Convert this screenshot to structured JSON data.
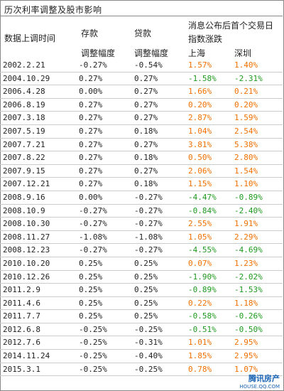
{
  "title": "历次利率调整及股市影响",
  "headers": {
    "date": "数据上调时间",
    "deposit": "存款",
    "loan": "贷款",
    "market_top": "消息公布后首个交易日",
    "market_sub": "指数涨跌",
    "deposit_sub": "调整幅度",
    "loan_sub": "调整幅度",
    "shanghai": "上海",
    "shenzhen": "深圳"
  },
  "colors": {
    "up": "#f07000",
    "down": "#1e9a1e"
  },
  "rows": [
    {
      "date": "2002.2.21",
      "deposit": "-0.27%",
      "loan": "-0.54%",
      "shanghai": "1.57%",
      "shenzhen": "1.40%"
    },
    {
      "date": "2004.10.29",
      "deposit": "0.27%",
      "loan": "0.27%",
      "shanghai": "-1.58%",
      "shenzhen": "-2.31%"
    },
    {
      "date": "2006.4.28",
      "deposit": "0.00%",
      "loan": "0.27%",
      "shanghai": "1.66%",
      "shenzhen": "0.21%"
    },
    {
      "date": "2006.8.19",
      "deposit": "0.27%",
      "loan": "0.27%",
      "shanghai": "0.20%",
      "shenzhen": "0.20%"
    },
    {
      "date": "2007.3.18",
      "deposit": "0.27%",
      "loan": "0.27%",
      "shanghai": "2.87%",
      "shenzhen": "1.59%"
    },
    {
      "date": "2007.5.19",
      "deposit": "0.27%",
      "loan": "0.18%",
      "shanghai": "1.04%",
      "shenzhen": "2.54%"
    },
    {
      "date": "2007.7.21",
      "deposit": "0.27%",
      "loan": "0.27%",
      "shanghai": "3.81%",
      "shenzhen": "5.38%"
    },
    {
      "date": "2007.8.22",
      "deposit": "0.27%",
      "loan": "0.18%",
      "shanghai": "0.50%",
      "shenzhen": "2.80%"
    },
    {
      "date": "2007.9.15",
      "deposit": "0.27%",
      "loan": "0.27%",
      "shanghai": "2.06%",
      "shenzhen": "1.54%"
    },
    {
      "date": "2007.12.21",
      "deposit": "0.27%",
      "loan": "0.18%",
      "shanghai": "1.15%",
      "shenzhen": "1.10%"
    },
    {
      "date": "2008.9.16",
      "deposit": "0.00%",
      "loan": "-0.27%",
      "shanghai": "-4.47%",
      "shenzhen": "-0.89%"
    },
    {
      "date": "2008.10.9",
      "deposit": "-0.27%",
      "loan": "-0.27%",
      "shanghai": "-0.84%",
      "shenzhen": "-2.40%"
    },
    {
      "date": "2008.10.30",
      "deposit": "-0.27%",
      "loan": "-0.27%",
      "shanghai": "2.55%",
      "shenzhen": "1.91%"
    },
    {
      "date": "2008.11.27",
      "deposit": "-1.08%",
      "loan": "-1.08%",
      "shanghai": "1.05%",
      "shenzhen": "2.29%"
    },
    {
      "date": "2008.12.23",
      "deposit": "-0.27%",
      "loan": "-0.27%",
      "shanghai": "-4.55%",
      "shenzhen": "-4.69%"
    },
    {
      "date": "2010.10.20",
      "deposit": "0.25%",
      "loan": "0.25%",
      "shanghai": "0.07%",
      "shenzhen": "1.23%"
    },
    {
      "date": "2010.12.26",
      "deposit": "0.25%",
      "loan": "0.25%",
      "shanghai": "-1.90%",
      "shenzhen": "-2.02%"
    },
    {
      "date": "2011.2.9",
      "deposit": "0.25%",
      "loan": "0.25%",
      "shanghai": "-0.89%",
      "shenzhen": "-1.53%"
    },
    {
      "date": "2011.4.6",
      "deposit": "0.25%",
      "loan": "0.25%",
      "shanghai": "0.22%",
      "shenzhen": "1.18%"
    },
    {
      "date": "2011.7.7",
      "deposit": "0.25%",
      "loan": "0.25%",
      "shanghai": "-0.58%",
      "shenzhen": "-0.26%"
    },
    {
      "date": "2012.6.8",
      "deposit": "-0.25%",
      "loan": "-0.25%",
      "shanghai": "-0.51%",
      "shenzhen": "-0.50%"
    },
    {
      "date": "2012.7.6",
      "deposit": "-0.25%",
      "loan": "-0.31%",
      "shanghai": "1.01%",
      "shenzhen": "2.95%"
    },
    {
      "date": "2014.11.24",
      "deposit": "-0.25%",
      "loan": "-0.40%",
      "shanghai": "1.85%",
      "shenzhen": "2.95%"
    },
    {
      "date": "2015.3.1",
      "deposit": "-0.25%",
      "loan": "-0.25%",
      "shanghai": "0.78%",
      "shenzhen": "1.07%"
    }
  ],
  "watermark": {
    "brand": "腾讯房产",
    "site": "HOUSE.QQ.COM"
  }
}
